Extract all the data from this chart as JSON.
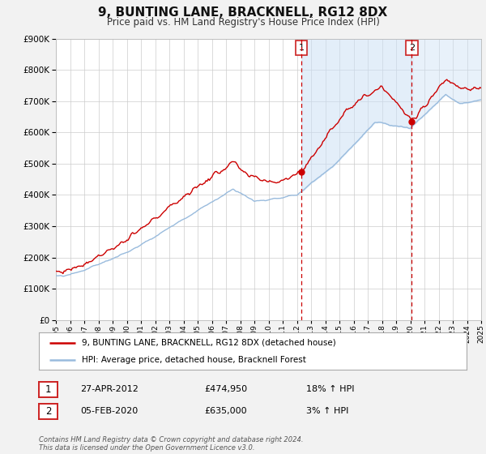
{
  "title": "9, BUNTING LANE, BRACKNELL, RG12 8DX",
  "subtitle": "Price paid vs. HM Land Registry's House Price Index (HPI)",
  "legend_line1": "9, BUNTING LANE, BRACKNELL, RG12 8DX (detached house)",
  "legend_line2": "HPI: Average price, detached house, Bracknell Forest",
  "annotation1_label": "1",
  "annotation1_date": "27-APR-2012",
  "annotation1_price": "£474,950",
  "annotation1_hpi": "18% ↑ HPI",
  "annotation1_year": 2012.32,
  "annotation1_value": 474950,
  "annotation2_label": "2",
  "annotation2_date": "05-FEB-2020",
  "annotation2_price": "£635,000",
  "annotation2_hpi": "3% ↑ HPI",
  "annotation2_year": 2020.1,
  "annotation2_value": 635000,
  "footer": "Contains HM Land Registry data © Crown copyright and database right 2024.\nThis data is licensed under the Open Government Licence v3.0.",
  "property_color": "#cc0000",
  "hpi_color": "#99bbdd",
  "background_color": "#f2f2f2",
  "plot_bg_color": "#ffffff",
  "grid_color": "#cccccc",
  "shade_color": "#cce0f5",
  "ylim": [
    0,
    900000
  ],
  "xlim_start": 1995,
  "xlim_end": 2025
}
